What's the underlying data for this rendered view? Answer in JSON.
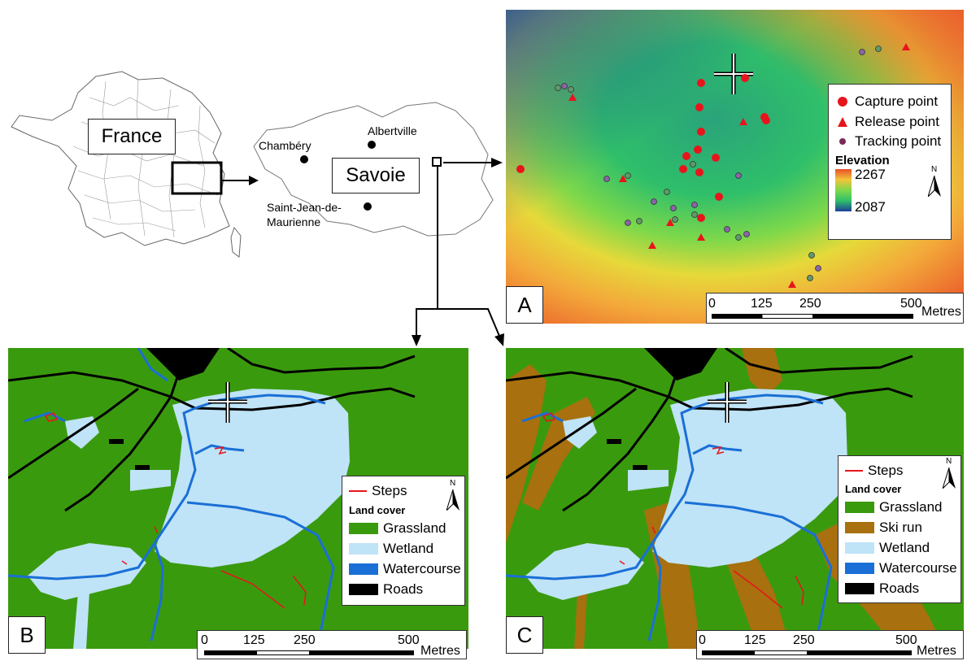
{
  "overview": {
    "country_label": "France",
    "region_label": "Savoie",
    "cities": [
      {
        "name": "Chambéry"
      },
      {
        "name": "Albertville"
      },
      {
        "name": "Saint-Jean-de-\nMaurienne"
      }
    ]
  },
  "panel_a": {
    "letter": "A",
    "legend": {
      "capture": "Capture point",
      "release": "Release point",
      "tracking": "Tracking point",
      "elevation_title": "Elevation",
      "elevation_max": "2267",
      "elevation_min": "2087"
    },
    "colors": {
      "capture": "#e8141c",
      "release": "#e8141c",
      "tracking": "#7b2a57"
    },
    "north": "N",
    "scale": {
      "ticks": [
        "0",
        "125",
        "250",
        "500"
      ],
      "unit": "Metres"
    }
  },
  "panel_b": {
    "letter": "B",
    "legend": {
      "steps": "Steps",
      "land_cover_title": "Land cover",
      "items": [
        "Grassland",
        "Wetland",
        "Watercourse",
        "Roads"
      ]
    },
    "north": "N",
    "scale": {
      "ticks": [
        "0",
        "125",
        "250",
        "500"
      ],
      "unit": "Metres"
    }
  },
  "panel_c": {
    "letter": "C",
    "legend": {
      "steps": "Steps",
      "land_cover_title": "Land cover",
      "items": [
        "Grassland",
        "Ski run",
        "Wetland",
        "Watercourse",
        "Roads"
      ]
    },
    "north": "N",
    "scale": {
      "ticks": [
        "0",
        "125",
        "250",
        "500"
      ],
      "unit": "Metres"
    }
  },
  "landcover_colors": {
    "grassland": "#3a9a0e",
    "ski_run": "#a8700e",
    "wetland": "#bfe3f7",
    "watercourse": "#1a6fd6",
    "roads": "#000000",
    "steps": "#e8141c"
  }
}
